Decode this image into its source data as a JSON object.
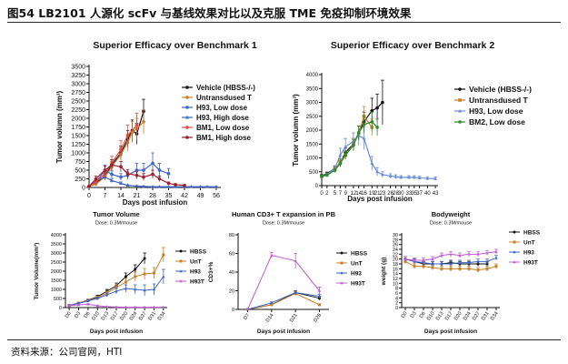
{
  "figure": {
    "title": "图54  LB2101 人源化 scFv 与基线效果对比以及克服 TME 免疫抑制环境效果",
    "source": "资料来源：公司官网，HTI"
  },
  "colors": {
    "black": "#111111",
    "orange": "#c8802c",
    "blue": "#3c63c6",
    "darkred": "#9c1f2b",
    "red": "#e04848",
    "green": "#2e8a2e",
    "purple": "#c05ad0"
  },
  "chart_data": [
    {
      "type": "line",
      "title": "Superior Efficacy over Benchmark 1",
      "xlabel": "Days post infusion",
      "ylabel": "Tumor volumn (mm³)",
      "x": [
        0,
        3,
        7,
        10,
        14,
        17,
        21,
        24,
        28,
        31,
        35,
        38,
        42,
        45,
        49,
        52,
        56
      ],
      "xticks": [
        0,
        7,
        14,
        21,
        28,
        35,
        42,
        49,
        56
      ],
      "yticks": [
        0,
        250,
        500,
        750,
        1000,
        1250,
        1500,
        1750,
        2000,
        2250,
        2500,
        2750,
        3000,
        3250,
        3500
      ],
      "ylim": [
        0,
        3500
      ],
      "xlim": [
        0,
        58
      ],
      "legend_position": "right",
      "series": [
        {
          "name": "Vehicle (HBSS-/-)",
          "color": "#111111",
          "marker": "circle",
          "x": [
            0,
            3,
            7,
            10,
            14,
            17,
            19,
            21,
            24
          ],
          "y": [
            30,
            120,
            330,
            650,
            1000,
            1400,
            1650,
            1550,
            2200
          ],
          "err": [
            10,
            40,
            80,
            150,
            200,
            250,
            300,
            300,
            350
          ]
        },
        {
          "name": "Untransdused T",
          "color": "#c8802c",
          "marker": "circle",
          "x": [
            0,
            3,
            7,
            10,
            14,
            17,
            19,
            21,
            24
          ],
          "y": [
            30,
            100,
            300,
            600,
            950,
            1300,
            1600,
            1700,
            1900
          ],
          "err": [
            10,
            40,
            80,
            150,
            200,
            250,
            300,
            300,
            350
          ]
        },
        {
          "name": "H93, Low dose",
          "color": "#3c63c6",
          "marker": "circle",
          "x": [
            0,
            3,
            7,
            10,
            14,
            17,
            21,
            24,
            28,
            31,
            35
          ],
          "y": [
            30,
            150,
            500,
            380,
            300,
            350,
            500,
            500,
            700,
            500,
            400
          ],
          "err": [
            10,
            60,
            150,
            100,
            100,
            120,
            200,
            200,
            300,
            200,
            150
          ]
        },
        {
          "name": "H93, High dose",
          "color": "#3c63c6",
          "marker": "triangle",
          "x": [
            0,
            3,
            7,
            10,
            14,
            17,
            21,
            24,
            28,
            31,
            35,
            38,
            42,
            45,
            49,
            52,
            56
          ],
          "y": [
            30,
            200,
            300,
            200,
            120,
            60,
            40,
            30,
            20,
            20,
            20,
            20,
            20,
            20,
            20,
            20,
            20
          ],
          "err": [
            10,
            60,
            80,
            60,
            40,
            20,
            15,
            10,
            10,
            10,
            10,
            10,
            10,
            10,
            10,
            10,
            10
          ]
        },
        {
          "name": "BM1, Low dose",
          "color": "#e04848",
          "marker": "circle",
          "x": [
            0,
            3,
            7,
            10,
            14,
            17,
            21
          ],
          "y": [
            30,
            150,
            400,
            700,
            1100,
            1500,
            1800
          ],
          "err": [
            10,
            50,
            100,
            200,
            250,
            300,
            350
          ]
        },
        {
          "name": "BM1, High dose",
          "color": "#9c1f2b",
          "marker": "circle",
          "x": [
            0,
            3,
            7,
            10,
            14,
            17,
            21,
            24,
            28,
            31,
            35,
            38,
            42
          ],
          "y": [
            30,
            250,
            500,
            650,
            600,
            400,
            350,
            300,
            380,
            250,
            120,
            80,
            60
          ],
          "err": [
            10,
            80,
            120,
            150,
            150,
            120,
            100,
            100,
            120,
            80,
            40,
            30,
            20
          ]
        }
      ]
    },
    {
      "type": "line",
      "title": "Superior Efficacy over Benchmark 2",
      "xlabel": "Days post infusion",
      "ylabel": "Tumor volumn (mm³)",
      "x": [
        0,
        2,
        5,
        7,
        9,
        12,
        14,
        16,
        19,
        21,
        23,
        26,
        28,
        30,
        33,
        35,
        37,
        40,
        43
      ],
      "xticks": [
        0,
        2,
        5,
        7,
        9,
        12,
        14,
        16,
        19,
        21,
        23,
        26,
        28,
        30,
        33,
        35,
        37,
        40,
        43
      ],
      "yticks": [
        0,
        500,
        1000,
        1500,
        2000,
        2500,
        3000,
        3500,
        4000
      ],
      "ylim": [
        0,
        4000
      ],
      "xlim": [
        0,
        44
      ],
      "legend_position": "right",
      "series": [
        {
          "name": "Vehicle (HBSS-/-)",
          "color": "#111111",
          "marker": "circle",
          "x": [
            0,
            2,
            5,
            7,
            9,
            12,
            14,
            16,
            19,
            21,
            23
          ],
          "y": [
            350,
            430,
            620,
            800,
            1200,
            1500,
            1900,
            2300,
            2700,
            2800,
            3000
          ],
          "err": [
            50,
            60,
            80,
            120,
            150,
            200,
            250,
            350,
            450,
            500,
            800
          ]
        },
        {
          "name": "Untransdused T",
          "color": "#c8802c",
          "marker": "square",
          "x": [
            0,
            2,
            5,
            7,
            9,
            12,
            14,
            16,
            19
          ],
          "y": [
            330,
            400,
            600,
            850,
            1100,
            1500,
            1900,
            2500,
            2100
          ],
          "err": [
            50,
            60,
            80,
            120,
            150,
            200,
            250,
            350,
            300
          ]
        },
        {
          "name": "H93, Low dose",
          "color": "#6b8dd8",
          "marker": "triangle",
          "x": [
            0,
            2,
            5,
            7,
            9,
            12,
            14,
            16,
            19,
            21,
            23,
            26,
            28,
            30,
            33,
            35,
            37,
            40,
            43
          ],
          "y": [
            330,
            400,
            620,
            1100,
            1400,
            1600,
            1800,
            1700,
            800,
            500,
            400,
            350,
            320,
            300,
            300,
            300,
            280,
            260,
            250
          ],
          "err": [
            50,
            60,
            100,
            250,
            300,
            300,
            350,
            400,
            250,
            150,
            100,
            80,
            70,
            60,
            60,
            60,
            60,
            60,
            60
          ]
        },
        {
          "name": "BM2, Low dose",
          "color": "#2e8a2e",
          "marker": "circle",
          "x": [
            0,
            2,
            5,
            7,
            9,
            12,
            14,
            16,
            19,
            21
          ],
          "y": [
            330,
            380,
            550,
            800,
            1100,
            1450,
            1900,
            2200,
            2300,
            2100
          ],
          "err": [
            50,
            60,
            80,
            120,
            150,
            200,
            250,
            300,
            350,
            300
          ]
        }
      ]
    },
    {
      "type": "line",
      "title": "Tumor Volume",
      "subtitle": "Dose: 0.3M/mouse",
      "xlabel": "Days post infusion",
      "ylabel": "Tumor Volume(mm³)",
      "categories": [
        "D0",
        "D3",
        "D6",
        "D10",
        "D13",
        "D17",
        "D20",
        "D24",
        "D27",
        "D31",
        "D34"
      ],
      "yticks": [
        0,
        500,
        1000,
        1500,
        2000,
        2500,
        3000,
        3500,
        4000
      ],
      "ylim": [
        0,
        4000
      ],
      "legend_position": "right",
      "series": [
        {
          "name": "HBSS",
          "color": "#111111",
          "marker": "circle",
          "values": [
            120,
            250,
            400,
            600,
            900,
            1200,
            1700,
            2100,
            2700,
            null,
            null
          ],
          "err": [
            30,
            40,
            60,
            80,
            100,
            150,
            200,
            250,
            300,
            null,
            null
          ]
        },
        {
          "name": "UnT",
          "color": "#c8802c",
          "marker": "square",
          "values": [
            120,
            250,
            380,
            550,
            800,
            1100,
            1400,
            1700,
            1850,
            1900,
            2900
          ],
          "err": [
            30,
            40,
            60,
            80,
            100,
            150,
            200,
            250,
            300,
            300,
            400
          ]
        },
        {
          "name": "H93",
          "color": "#3c63c6",
          "marker": "triangle",
          "values": [
            120,
            230,
            360,
            500,
            700,
            900,
            1050,
            1000,
            950,
            1000,
            1700
          ],
          "err": [
            30,
            40,
            60,
            80,
            100,
            150,
            200,
            250,
            300,
            300,
            400
          ]
        },
        {
          "name": "H93T",
          "color": "#c05ad0",
          "marker": "triangle",
          "values": [
            100,
            150,
            180,
            100,
            50,
            30,
            20,
            20,
            20,
            20,
            20
          ],
          "err": [
            20,
            30,
            30,
            20,
            10,
            10,
            5,
            5,
            5,
            5,
            5
          ]
        }
      ]
    },
    {
      "type": "line",
      "title": "Human CD3+ T expansion in PB",
      "subtitle": "Dose: 0.3M/mouse",
      "xlabel": "Days post infusion",
      "ylabel": "CD3+%",
      "categories": [
        "D7",
        "D14",
        "D21",
        "D28"
      ],
      "yticks": [
        0,
        20,
        40,
        60,
        80
      ],
      "ylim": [
        0,
        80
      ],
      "legend_position": "right",
      "series": [
        {
          "name": "HBSS",
          "color": "#111111",
          "marker": "circle",
          "values": [
            0,
            5,
            18,
            12
          ],
          "err": [
            0,
            1,
            2,
            2
          ]
        },
        {
          "name": "UnT",
          "color": "#c8802c",
          "marker": "square",
          "values": [
            0,
            5,
            17,
            5
          ],
          "err": [
            0,
            1,
            2,
            1
          ]
        },
        {
          "name": "H93",
          "color": "#3c63c6",
          "marker": "triangle",
          "values": [
            0,
            7,
            18,
            14
          ],
          "err": [
            0,
            1,
            2,
            2
          ]
        },
        {
          "name": "H93T",
          "color": "#c05ad0",
          "marker": "triangle",
          "values": [
            0,
            58,
            52,
            20
          ],
          "err": [
            0,
            3,
            8,
            4
          ]
        }
      ]
    },
    {
      "type": "line",
      "title": "Bodyweight",
      "subtitle": "Dose: 0.3M/mouse",
      "xlabel": "Days post infusion",
      "ylabel": "weight (g)",
      "categories": [
        "D0",
        "D3",
        "D6",
        "D10",
        "D13",
        "D17",
        "D20",
        "D24",
        "D27",
        "D31",
        "D34"
      ],
      "yticks": [
        0,
        2,
        4,
        6,
        8,
        10,
        12,
        14,
        16,
        18,
        20,
        22,
        24,
        26,
        28,
        30
      ],
      "ylim": [
        0,
        30
      ],
      "legend_position": "right",
      "series": [
        {
          "name": "HBSS",
          "color": "#111111",
          "marker": "circle",
          "values": [
            20,
            19,
            18,
            18,
            18,
            18.5,
            18,
            18,
            18,
            18,
            null
          ],
          "err": [
            1,
            1,
            1,
            1,
            1,
            1,
            1,
            1,
            1,
            1,
            null
          ]
        },
        {
          "name": "UnT",
          "color": "#c8802c",
          "marker": "square",
          "values": [
            19,
            17,
            17,
            16.5,
            16,
            16,
            16,
            16,
            15.5,
            16,
            17
          ],
          "err": [
            1,
            1,
            1,
            1,
            1,
            1,
            1,
            1,
            1,
            1,
            1
          ]
        },
        {
          "name": "H93",
          "color": "#3c63c6",
          "marker": "triangle",
          "values": [
            20,
            19,
            18.5,
            18,
            18,
            18,
            18.5,
            18.5,
            19,
            19,
            20.5
          ],
          "err": [
            1,
            1,
            1,
            1,
            1,
            1,
            1,
            1,
            1,
            1,
            1
          ]
        },
        {
          "name": "H93T",
          "color": "#c05ad0",
          "marker": "triangle",
          "values": [
            20,
            19.5,
            19.5,
            20,
            21.5,
            22,
            21.5,
            22,
            22,
            22.5,
            23
          ],
          "err": [
            1,
            1,
            1,
            1,
            1,
            1,
            1,
            1,
            1,
            1,
            1
          ]
        }
      ]
    }
  ]
}
